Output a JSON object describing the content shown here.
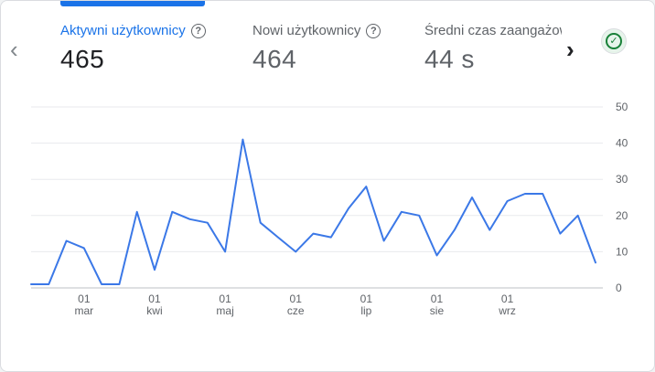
{
  "metrics": [
    {
      "label": "Aktywni użytkownicy",
      "value": "465",
      "active": true
    },
    {
      "label": "Nowi użytkownicy",
      "value": "464",
      "active": false
    },
    {
      "label": "Średni czas zaangażow",
      "value": "44 s",
      "active": false
    }
  ],
  "help_glyph": "?",
  "nav": {
    "prev_glyph": "‹",
    "next_glyph": "›"
  },
  "status_glyph": "✓",
  "colors": {
    "accent": "#1a73e8",
    "line": "#3b78e7",
    "status": "#188038"
  },
  "chart_data": {
    "type": "line",
    "title": "",
    "xlabel": "",
    "ylabel": "",
    "ylim": [
      0,
      50
    ],
    "yticks": [
      0,
      10,
      20,
      30,
      40,
      50
    ],
    "y_axis_position": "right",
    "grid": true,
    "x_ticks": [
      {
        "day": "01",
        "month": "mar",
        "index": 3
      },
      {
        "day": "01",
        "month": "kwi",
        "index": 7
      },
      {
        "day": "01",
        "month": "maj",
        "index": 11
      },
      {
        "day": "01",
        "month": "cze",
        "index": 15
      },
      {
        "day": "01",
        "month": "lip",
        "index": 19
      },
      {
        "day": "01",
        "month": "sie",
        "index": 23
      },
      {
        "day": "01",
        "month": "wrz",
        "index": 27
      }
    ],
    "series": [
      {
        "values": [
          1,
          1,
          13,
          11,
          1,
          1,
          21,
          5,
          21,
          19,
          18,
          10,
          41,
          18,
          14,
          10,
          15,
          14,
          22,
          28,
          13,
          21,
          20,
          9,
          16,
          25,
          16,
          24,
          26,
          26,
          15,
          20,
          7
        ]
      }
    ]
  }
}
